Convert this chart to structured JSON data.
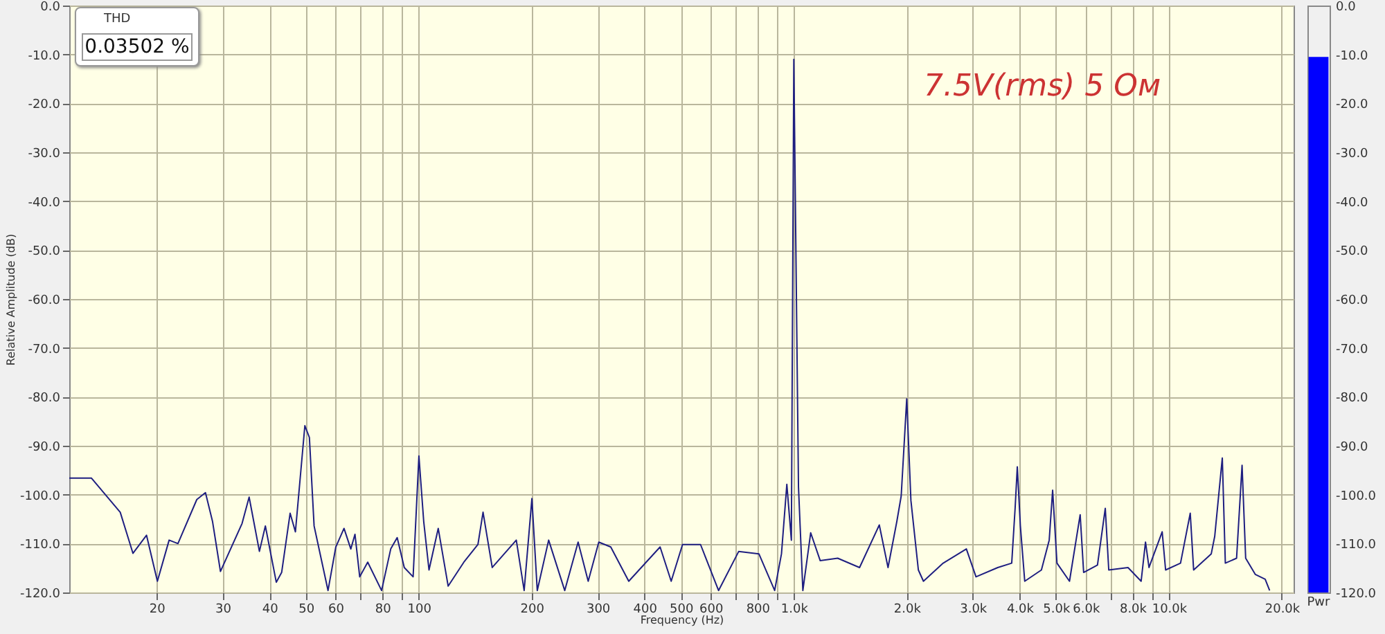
{
  "chart_data": [
    {
      "type": "line",
      "xlabel": "Frequency (Hz)",
      "ylabel": "Relative Amplitude (dB)",
      "annotations": [
        "THD",
        "0.03502 %",
        "7.5V(rms) 5 Ом"
      ],
      "log": "x",
      "grid": true,
      "xlim": [
        11.7,
        21500
      ],
      "ylim": [
        -120,
        0
      ],
      "xticks": [
        20,
        30,
        40,
        50,
        60,
        {
          "value": 70,
          "label": null
        },
        80,
        {
          "value": 90,
          "label": null
        },
        100,
        200,
        300,
        400,
        500,
        600,
        {
          "value": 700,
          "label": null
        },
        800,
        {
          "value": 900,
          "label": null
        },
        {
          "value": 1000,
          "label": "1.0k"
        },
        {
          "value": 2000,
          "label": "2.0k"
        },
        {
          "value": 3000,
          "label": "3.0k"
        },
        {
          "value": 4000,
          "label": "4.0k"
        },
        {
          "value": 5000,
          "label": "5.0k"
        },
        {
          "value": 6000,
          "label": "6.0k"
        },
        {
          "value": 7000,
          "label": null
        },
        {
          "value": 8000,
          "label": "8.0k"
        },
        {
          "value": 9000,
          "label": null
        },
        {
          "value": 10000,
          "label": "10.0k"
        },
        {
          "value": 20000,
          "label": "20.0k"
        }
      ],
      "yticks": [
        {
          "value": 0,
          "label": "0.0"
        },
        {
          "value": -10,
          "label": "-10.0"
        },
        {
          "value": -20,
          "label": "-20.0"
        },
        {
          "value": -30,
          "label": "-30.0"
        },
        {
          "value": -40,
          "label": "-40.0"
        },
        {
          "value": -50,
          "label": "-50.0"
        },
        {
          "value": -60,
          "label": "-60.0"
        },
        {
          "value": -70,
          "label": "-70.0"
        },
        {
          "value": -80,
          "label": "-80.0"
        },
        {
          "value": -90,
          "label": "-90.0"
        },
        {
          "value": -100,
          "label": "-100.0"
        },
        {
          "value": -110,
          "label": "-110.0"
        },
        {
          "value": -120,
          "label": "-120.0"
        }
      ],
      "series": [
        {
          "color": "#1e1e80",
          "x": [
            11.7,
            13.4,
            16.0,
            17.3,
            18.8,
            20.1,
            21.6,
            22.8,
            25.6,
            27.0,
            28.2,
            29.6,
            33.8,
            35.3,
            37.6,
            39.0,
            41.7,
            43.1,
            45.4,
            46.9,
            49.7,
            51.1,
            52.6,
            57.3,
            60.1,
            63.2,
            65.9,
            67.6,
            69.6,
            73.1,
            79.6,
            84.2,
            87.6,
            91.5,
            96.6,
            100.1,
            103.1,
            106.5,
            112.7,
            119.8,
            131.9,
            143.8,
            148.4,
            157,
            182,
            191,
            200.3,
            207,
            222,
            245,
            266,
            283,
            302,
            325,
            363,
            440,
            471,
            505,
            564,
            630,
            713,
            807,
            889,
            927,
            958,
            985,
            1000,
            1029,
            1057,
            1109,
            1176,
            1309,
            1497,
            1690,
            1783,
            1882,
            1933,
            2000,
            2052,
            2148,
            2216,
            2502,
            2884,
            3060,
            3497,
            3810,
            3891,
            3943,
            4018,
            4127,
            4572,
            4796,
            4898,
            5030,
            5432,
            5800,
            5925,
            6450,
            6767,
            6913,
            7780,
            8433,
            8662,
            8850,
            9596,
            9800,
            10740,
            11400,
            11640,
            12970,
            13250,
            13880,
            14140,
            15150,
            15670,
            16020,
            16990,
            18060,
            18560
          ],
          "values": [
            -96.6,
            -96.6,
            -103.6,
            -112,
            -108.3,
            -117.7,
            -109.3,
            -110,
            -101,
            -99.6,
            -105.5,
            -115.7,
            -105.9,
            -100.5,
            -111.6,
            -106.4,
            -117.9,
            -115.9,
            -103.8,
            -107.6,
            -85.9,
            -88.3,
            -106.4,
            -119.6,
            -110.7,
            -106.9,
            -111.1,
            -108.1,
            -116.8,
            -113.8,
            -119.6,
            -111.1,
            -108.8,
            -114.9,
            -116.8,
            -92.1,
            -105.5,
            -115.4,
            -106.9,
            -118.7,
            -113.8,
            -110.2,
            -103.6,
            -114.9,
            -109.3,
            -119.6,
            -100.8,
            -119.6,
            -109.3,
            -119.6,
            -109.7,
            -117.7,
            -109.7,
            -110.7,
            -117.7,
            -110.7,
            -117.7,
            -110.2,
            -110.2,
            -119.6,
            -111.6,
            -112.1,
            -119.6,
            -112.1,
            -97.9,
            -109.3,
            -11,
            -98.4,
            -119.6,
            -107.8,
            -113.5,
            -113,
            -114.9,
            -106.2,
            -114.9,
            -105.5,
            -100.3,
            -80.4,
            -101.2,
            -115.4,
            -117.7,
            -114,
            -111.1,
            -116.8,
            -114.9,
            -114,
            -102.7,
            -94.3,
            -106.4,
            -117.7,
            -115.4,
            -109.3,
            -99.1,
            -114,
            -117.7,
            -104.1,
            -115.9,
            -114.4,
            -102.8,
            -115.4,
            -114.9,
            -117.7,
            -109.7,
            -114.9,
            -107.6,
            -115.4,
            -114,
            -103.8,
            -115.4,
            -112.1,
            -108.5,
            -92.5,
            -114,
            -113,
            -94,
            -113,
            -116.3,
            -117.3,
            -119.6
          ]
        }
      ]
    },
    {
      "type": "bar",
      "categories": [
        "Pwr"
      ],
      "base": [
        -120
      ],
      "values": [
        109.5
      ],
      "color": "#0000ff",
      "ylim": [
        -120,
        0
      ],
      "yticks": [
        {
          "value": 0,
          "label": "0.0"
        },
        {
          "value": -10,
          "label": "-10.0"
        },
        {
          "value": -20,
          "label": "-20.0"
        },
        {
          "value": -30,
          "label": "-30.0"
        },
        {
          "value": -40,
          "label": "-40.0"
        },
        {
          "value": -50,
          "label": "-50.0"
        },
        {
          "value": -60,
          "label": "-60.0"
        },
        {
          "value": -70,
          "label": "-70.0"
        },
        {
          "value": -80,
          "label": "-80.0"
        },
        {
          "value": -90,
          "label": "-90.0"
        },
        {
          "value": -100,
          "label": "-100.0"
        },
        {
          "value": -110,
          "label": "-110.0"
        },
        {
          "value": -120,
          "label": "-120.0"
        }
      ]
    }
  ]
}
